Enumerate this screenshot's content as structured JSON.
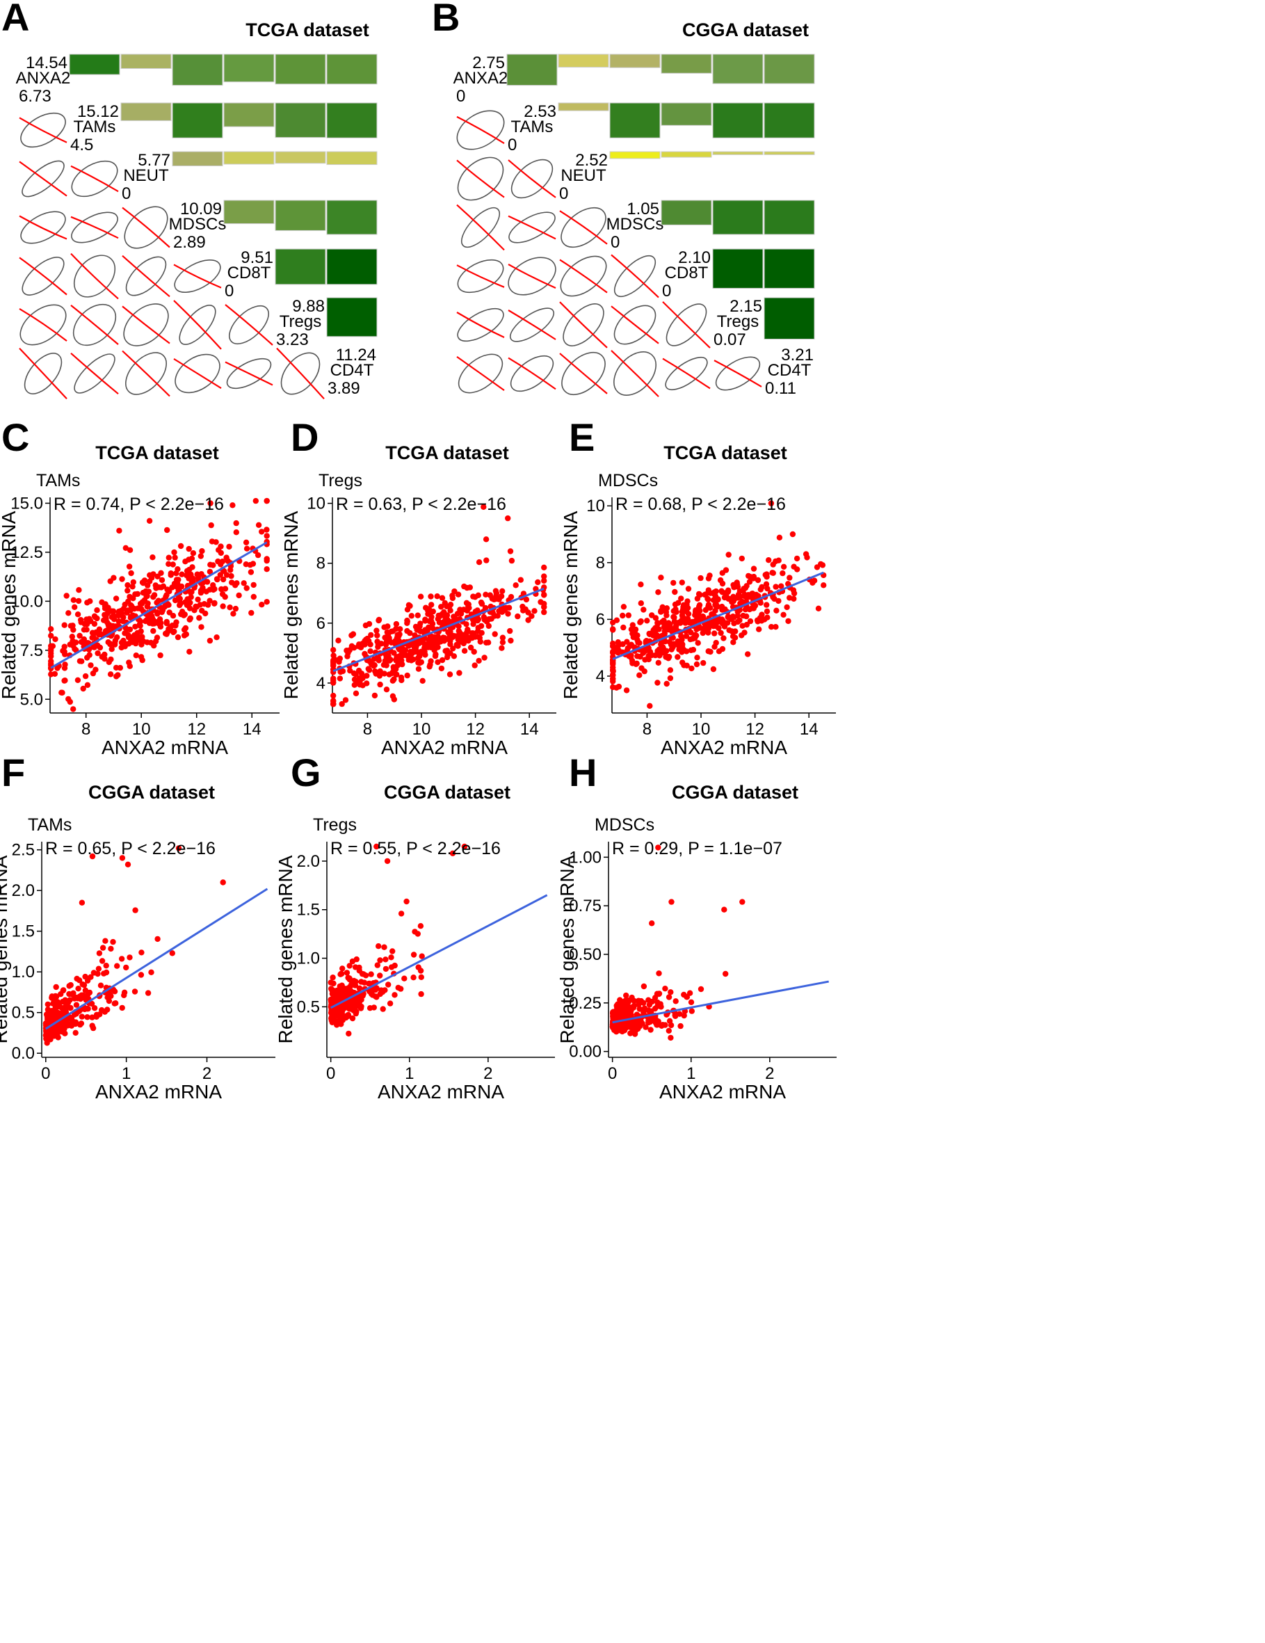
{
  "figure": {
    "panels_matrix": [
      {
        "letter": "A",
        "title": "TCGA dataset",
        "variables": [
          "ANXA2",
          "TAMs",
          "NEUT",
          "MDSCs",
          "CD8T",
          "Tregs",
          "CD4T"
        ],
        "max_values": [
          "14.54",
          "15.12",
          "5.77",
          "10.09",
          "9.51",
          "9.88",
          "11.24"
        ],
        "min_values": [
          "6.73",
          "4.5",
          "0",
          "2.89",
          "0",
          "3.23",
          "3.89"
        ],
        "upper_bars": [
          [
            0,
            1,
            0.47,
            "#247b18"
          ],
          [
            0,
            2,
            0.33,
            "#aab262"
          ],
          [
            0,
            3,
            0.72,
            "#569038"
          ],
          [
            0,
            4,
            0.64,
            "#659a40"
          ],
          [
            0,
            5,
            0.69,
            "#5e9438"
          ],
          [
            0,
            6,
            0.69,
            "#5e9438"
          ],
          [
            1,
            2,
            0.41,
            "#a6ae64"
          ],
          [
            1,
            3,
            0.81,
            "#307f1d"
          ],
          [
            1,
            4,
            0.55,
            "#7b9e48"
          ],
          [
            1,
            5,
            0.8,
            "#4d8a31"
          ],
          [
            1,
            6,
            0.81,
            "#337f1f"
          ],
          [
            2,
            3,
            0.33,
            "#aaae66"
          ],
          [
            2,
            4,
            0.29,
            "#cccc5a"
          ],
          [
            2,
            5,
            0.27,
            "#c9c762"
          ],
          [
            2,
            6,
            0.3,
            "#cccc5a"
          ],
          [
            3,
            4,
            0.54,
            "#7a9e48"
          ],
          [
            3,
            5,
            0.7,
            "#5e9438"
          ],
          [
            3,
            6,
            0.79,
            "#3c8526"
          ],
          [
            4,
            5,
            0.82,
            "#2f7e1e"
          ],
          [
            4,
            6,
            0.82,
            "#005d00"
          ],
          [
            5,
            6,
            0.9,
            "#005f00"
          ]
        ]
      },
      {
        "letter": "B",
        "title": "CGGA dataset",
        "variables": [
          "ANXA2",
          "TAMs",
          "NEUT",
          "MDSCs",
          "CD8T",
          "Tregs",
          "CD4T"
        ],
        "max_values": [
          "2.75",
          "2.53",
          "2.52",
          "1.05",
          "2.10",
          "2.15",
          "3.21"
        ],
        "min_values": [
          "0",
          "0",
          "0",
          "0",
          "0",
          "0.07",
          "0.11"
        ],
        "upper_bars": [
          [
            0,
            1,
            0.72,
            "#5b9038"
          ],
          [
            0,
            2,
            0.3,
            "#d4cc5e"
          ],
          [
            0,
            3,
            0.31,
            "#b3b266"
          ],
          [
            0,
            4,
            0.44,
            "#789c48"
          ],
          [
            0,
            5,
            0.68,
            "#6c9a48"
          ],
          [
            0,
            6,
            0.68,
            "#6b9846"
          ],
          [
            1,
            2,
            0.18,
            "#bfba60"
          ],
          [
            1,
            3,
            0.81,
            "#337f1f"
          ],
          [
            1,
            4,
            0.52,
            "#649440"
          ],
          [
            1,
            5,
            0.81,
            "#2b7b1c"
          ],
          [
            1,
            6,
            0.81,
            "#2b7b1c"
          ],
          [
            2,
            3,
            0.16,
            "#eded1c"
          ],
          [
            2,
            4,
            0.13,
            "#d8d640"
          ],
          [
            2,
            5,
            0.07,
            "#cccc5a"
          ],
          [
            2,
            6,
            0.07,
            "#cccc5a"
          ],
          [
            3,
            4,
            0.57,
            "#4f8a32"
          ],
          [
            3,
            5,
            0.79,
            "#2b7b1c"
          ],
          [
            3,
            6,
            0.79,
            "#2b7b1c"
          ],
          [
            4,
            5,
            0.91,
            "#005d00"
          ],
          [
            4,
            6,
            0.91,
            "#005d00"
          ],
          [
            5,
            6,
            0.96,
            "#005d00"
          ]
        ]
      }
    ],
    "scatter_panels": [
      {
        "letter": "C",
        "title": "TCGA dataset",
        "series_label": "TAMs",
        "stat": "R = 0.74, P < 2.2e−16"
      },
      {
        "letter": "D",
        "title": "TCGA dataset",
        "series_label": "Tregs",
        "stat": "R = 0.63, P < 2.2e−16"
      },
      {
        "letter": "E",
        "title": "TCGA dataset",
        "series_label": "MDSCs",
        "stat": "R = 0.68, P < 2.2e−16"
      },
      {
        "letter": "F",
        "title": "CGGA dataset",
        "series_label": "TAMs",
        "stat": "R = 0.65, P < 2.2e−16"
      },
      {
        "letter": "G",
        "title": "CGGA dataset",
        "series_label": "Tregs",
        "stat": "R = 0.55, P < 2.2e−16"
      },
      {
        "letter": "H",
        "title": "CGGA dataset",
        "series_label": "MDSCs",
        "stat": "R = 0.29, P = 1.1e−07"
      }
    ],
    "colors": {
      "point": "#ff0000",
      "fit_line": "#3d63dd",
      "ellipse": "#555555",
      "loess": "#ff0000"
    }
  },
  "chart_data": [
    {
      "type": "scatter",
      "panel": "C",
      "title": "TCGA dataset",
      "xlabel": "ANXA2 mRNA",
      "ylabel": "Related genes mRNA",
      "xlim": [
        6.7,
        15.0
      ],
      "ylim": [
        4.3,
        15.3
      ],
      "xticks": [
        "8",
        "10",
        "12",
        "14"
      ],
      "yticks": [
        "5.0",
        "7.5",
        "10.0",
        "12.5",
        "15.0"
      ],
      "xtick_values": [
        8,
        10,
        12,
        14
      ],
      "ytick_values": [
        5.0,
        7.5,
        10.0,
        12.5,
        15.0
      ],
      "fit": {
        "x": [
          6.73,
          14.54
        ],
        "y": [
          6.6,
          13.0
        ]
      },
      "cloud": {
        "n": 520,
        "x_center": 10.2,
        "x_sd": 1.9,
        "y_center": 9.5,
        "y_sd": 1.7,
        "x_min": 6.73,
        "x_max": 14.54,
        "y_min": 4.5,
        "y_max": 15.12,
        "seed": 11
      },
      "extra_points": [
        [
          12.5,
          15.0
        ],
        [
          13.3,
          14.9
        ],
        [
          10.3,
          14.1
        ],
        [
          9.2,
          13.6
        ]
      ]
    },
    {
      "type": "scatter",
      "panel": "D",
      "title": "TCGA dataset",
      "xlabel": "ANXA2 mRNA",
      "ylabel": "Related genes mRNA",
      "xlim": [
        6.7,
        15.0
      ],
      "ylim": [
        3.0,
        10.2
      ],
      "xticks": [
        "8",
        "10",
        "12",
        "14"
      ],
      "yticks": [
        "4",
        "6",
        "8",
        "10"
      ],
      "xtick_values": [
        8,
        10,
        12,
        14
      ],
      "ytick_values": [
        4,
        6,
        8,
        10
      ],
      "fit": {
        "x": [
          6.73,
          14.54
        ],
        "y": [
          4.4,
          7.15
        ]
      },
      "cloud": {
        "n": 520,
        "x_center": 10.0,
        "x_sd": 1.9,
        "y_center": 5.4,
        "y_sd": 0.85,
        "x_min": 6.73,
        "x_max": 14.54,
        "y_min": 3.3,
        "y_max": 9.6,
        "seed": 23
      },
      "extra_points": [
        [
          12.3,
          9.88
        ],
        [
          13.2,
          9.5
        ],
        [
          12.4,
          8.8
        ],
        [
          13.3,
          8.4
        ]
      ]
    },
    {
      "type": "scatter",
      "panel": "E",
      "title": "TCGA dataset",
      "xlabel": "ANXA2 mRNA",
      "ylabel": "Related genes mRNA",
      "xlim": [
        6.7,
        15.0
      ],
      "ylim": [
        2.7,
        10.3
      ],
      "xticks": [
        "8",
        "10",
        "12",
        "14"
      ],
      "yticks": [
        "4",
        "6",
        "8",
        "10"
      ],
      "xtick_values": [
        8,
        10,
        12,
        14
      ],
      "ytick_values": [
        4,
        6,
        8,
        10
      ],
      "fit": {
        "x": [
          6.73,
          14.54
        ],
        "y": [
          4.6,
          7.65
        ]
      },
      "cloud": {
        "n": 520,
        "x_center": 10.0,
        "x_sd": 1.9,
        "y_center": 6.0,
        "y_sd": 0.95,
        "x_min": 6.73,
        "x_max": 14.54,
        "y_min": 2.89,
        "y_max": 9.1,
        "seed": 37
      },
      "extra_points": [
        [
          12.6,
          10.09
        ],
        [
          13.4,
          9.0
        ],
        [
          8.1,
          2.95
        ]
      ]
    },
    {
      "type": "scatter",
      "panel": "F",
      "title": "CGGA dataset",
      "xlabel": "ANXA2 mRNA",
      "ylabel": "Related genes mRNA",
      "xlim": [
        -0.05,
        2.85
      ],
      "ylim": [
        -0.05,
        2.6
      ],
      "xticks": [
        "0",
        "1",
        "2"
      ],
      "yticks": [
        "0.0",
        "0.5",
        "1.0",
        "1.5",
        "2.0",
        "2.5"
      ],
      "xtick_values": [
        0,
        1,
        2
      ],
      "ytick_values": [
        0,
        0.5,
        1.0,
        1.5,
        2.0,
        2.5
      ],
      "fit": {
        "x": [
          0.0,
          2.75
        ],
        "y": [
          0.3,
          2.02
        ]
      },
      "cloud": {
        "n": 340,
        "skew": true,
        "x_scale": 0.55,
        "slope": 0.62,
        "intercept": 0.28,
        "noise": 0.42,
        "x_min": 0,
        "x_max": 2.75,
        "y_min": 0,
        "y_max": 2.53,
        "seed": 51
      },
      "extra_points": [
        [
          0.58,
          2.42
        ],
        [
          1.65,
          2.52
        ],
        [
          1.02,
          2.32
        ],
        [
          0.95,
          2.4
        ],
        [
          0.45,
          1.85
        ],
        [
          2.2,
          2.1
        ]
      ]
    },
    {
      "type": "scatter",
      "panel": "G",
      "title": "CGGA dataset",
      "xlabel": "ANXA2 mRNA",
      "ylabel": "Related genes mRNA",
      "xlim": [
        -0.05,
        2.85
      ],
      "ylim": [
        -0.02,
        2.2
      ],
      "xticks": [
        "0",
        "1",
        "2"
      ],
      "yticks": [
        "0.5",
        "1.0",
        "1.5",
        "2.0"
      ],
      "xtick_values": [
        0,
        1,
        2
      ],
      "ytick_values": [
        0.5,
        1.0,
        1.5,
        2.0
      ],
      "fit": {
        "x": [
          0.0,
          2.75
        ],
        "y": [
          0.49,
          1.65
        ]
      },
      "cloud": {
        "n": 340,
        "skew": true,
        "x_scale": 0.55,
        "slope": 0.42,
        "intercept": 0.47,
        "noise": 0.38,
        "x_min": 0,
        "x_max": 2.75,
        "y_min": 0.07,
        "y_max": 2.15,
        "seed": 67
      },
      "extra_points": [
        [
          0.58,
          2.15
        ],
        [
          1.7,
          2.15
        ],
        [
          1.55,
          2.08
        ],
        [
          0.72,
          2.0
        ]
      ]
    },
    {
      "type": "scatter",
      "panel": "H",
      "title": "CGGA dataset",
      "xlabel": "ANXA2 mRNA",
      "ylabel": "Related genes mRNA",
      "xlim": [
        -0.05,
        2.85
      ],
      "ylim": [
        -0.03,
        1.08
      ],
      "xticks": [
        "0",
        "1",
        "2"
      ],
      "yticks": [
        "0.00",
        "0.25",
        "0.50",
        "0.75",
        "1.00"
      ],
      "xtick_values": [
        0,
        1,
        2
      ],
      "ytick_values": [
        0,
        0.25,
        0.5,
        0.75,
        1.0
      ],
      "fit": {
        "x": [
          0.0,
          2.75
        ],
        "y": [
          0.15,
          0.36
        ]
      },
      "cloud": {
        "n": 340,
        "skew": true,
        "x_scale": 0.55,
        "slope": 0.08,
        "intercept": 0.15,
        "noise": 0.13,
        "x_min": 0,
        "x_max": 2.75,
        "y_min": 0,
        "y_max": 0.8,
        "seed": 83
      },
      "extra_points": [
        [
          0.58,
          1.05
        ],
        [
          0.75,
          0.77
        ],
        [
          1.42,
          0.73
        ],
        [
          1.65,
          0.77
        ],
        [
          0.5,
          0.66
        ]
      ]
    }
  ]
}
